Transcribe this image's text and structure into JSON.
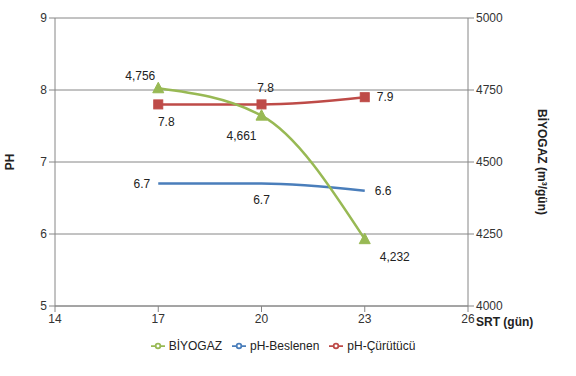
{
  "chart_data": {
    "type": "line",
    "x": [
      17,
      20,
      23
    ],
    "xlim": [
      14,
      26
    ],
    "xticks": [
      14,
      17,
      20,
      23,
      26
    ],
    "ylim": [
      5,
      9
    ],
    "yticks": [
      5,
      6,
      7,
      8,
      9
    ],
    "y2lim": [
      4000,
      5000
    ],
    "y2ticks": [
      4000,
      4250,
      4500,
      4750,
      5000
    ],
    "x_label": "SRT (gün)",
    "y_label": "PH",
    "y2_label": "BİYOGAZ (m³/gün)",
    "grid": true,
    "legend": "bottom",
    "data_labels": true,
    "series": [
      {
        "name": "pH-Beslenen",
        "color": "#4a7ebb",
        "values": [
          6.7,
          6.7,
          6.6
        ],
        "marker": "none"
      },
      {
        "name": "pH-Çürütücü",
        "color": "#be4b48",
        "values": [
          7.8,
          7.8,
          7.9
        ],
        "marker": "square"
      },
      {
        "name": "BİYOGAZ",
        "color": "#98b954",
        "values": [
          4756,
          4661,
          4232
        ],
        "value_labels": [
          "4,756",
          "4,661",
          "4,232"
        ],
        "marker": "triangle",
        "axis": "y2"
      }
    ]
  }
}
